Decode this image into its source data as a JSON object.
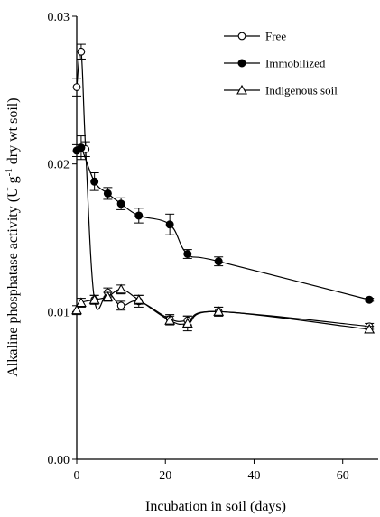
{
  "chart_data": {
    "type": "line",
    "xlabel": "Incubation in soil (days)",
    "ylabel_parts": [
      "Alkaline phosphatase activity (U g",
      "-1",
      " dry wt soil)"
    ],
    "xlim": [
      0,
      68
    ],
    "ylim": [
      0,
      0.03
    ],
    "x_ticks": [
      0,
      20,
      40,
      60
    ],
    "x_tick_labels": [
      "0",
      "20",
      "40",
      "60"
    ],
    "y_ticks": [
      0,
      0.01,
      0.02,
      0.03
    ],
    "y_tick_labels": [
      "0.00",
      "0.01",
      "0.02",
      "0.03"
    ],
    "grid": false,
    "legend_position": "top-right",
    "series": [
      {
        "name": "Free",
        "marker": "circle-open",
        "points": [
          {
            "x": 0,
            "y": 0.0252,
            "err": 0.0006
          },
          {
            "x": 1,
            "y": 0.0276,
            "err": 0.0005
          },
          {
            "x": 2,
            "y": 0.021,
            "err": 0.0005
          },
          {
            "x": 4,
            "y": 0.0108,
            "err": 0.0003
          },
          {
            "x": 7,
            "y": 0.0113,
            "err": 0.0003
          },
          {
            "x": 10,
            "y": 0.0104,
            "err": 0.0003
          },
          {
            "x": 14,
            "y": 0.0107,
            "err": 0.0004
          },
          {
            "x": 21,
            "y": 0.0095,
            "err": 0.0003
          },
          {
            "x": 25,
            "y": 0.0094,
            "err": 0.0003
          },
          {
            "x": 32,
            "y": 0.01,
            "err": 0.0003
          },
          {
            "x": 66,
            "y": 0.009,
            "err": 0.0002
          }
        ]
      },
      {
        "name": "Immobilized",
        "marker": "circle-filled",
        "points": [
          {
            "x": 0,
            "y": 0.0209,
            "err": 0.0004
          },
          {
            "x": 1,
            "y": 0.0211,
            "err": 0.0008
          },
          {
            "x": 4,
            "y": 0.0188,
            "err": 0.0006
          },
          {
            "x": 7,
            "y": 0.018,
            "err": 0.0004
          },
          {
            "x": 10,
            "y": 0.0173,
            "err": 0.0004
          },
          {
            "x": 14,
            "y": 0.0165,
            "err": 0.0005
          },
          {
            "x": 21,
            "y": 0.0159,
            "err": 0.0007
          },
          {
            "x": 25,
            "y": 0.0139,
            "err": 0.0003
          },
          {
            "x": 32,
            "y": 0.0134,
            "err": 0.0003
          },
          {
            "x": 66,
            "y": 0.0108,
            "err": 0.0001
          }
        ]
      },
      {
        "name": "Indigenous soil",
        "marker": "triangle-open",
        "points": [
          {
            "x": 0,
            "y": 0.0101,
            "err": 0.0003
          },
          {
            "x": 1,
            "y": 0.0106,
            "err": 0.0003
          },
          {
            "x": 4,
            "y": 0.0108,
            "err": 0.0003
          },
          {
            "x": 7,
            "y": 0.011,
            "err": 0.0003
          },
          {
            "x": 10,
            "y": 0.0115,
            "err": 0.0003
          },
          {
            "x": 14,
            "y": 0.0108,
            "err": 0.0003
          },
          {
            "x": 21,
            "y": 0.0094,
            "err": 0.0003
          },
          {
            "x": 25,
            "y": 0.0092,
            "err": 0.0005
          },
          {
            "x": 32,
            "y": 0.01,
            "err": 0.0003
          },
          {
            "x": 66,
            "y": 0.0088,
            "err": 0.0002
          }
        ]
      }
    ]
  }
}
